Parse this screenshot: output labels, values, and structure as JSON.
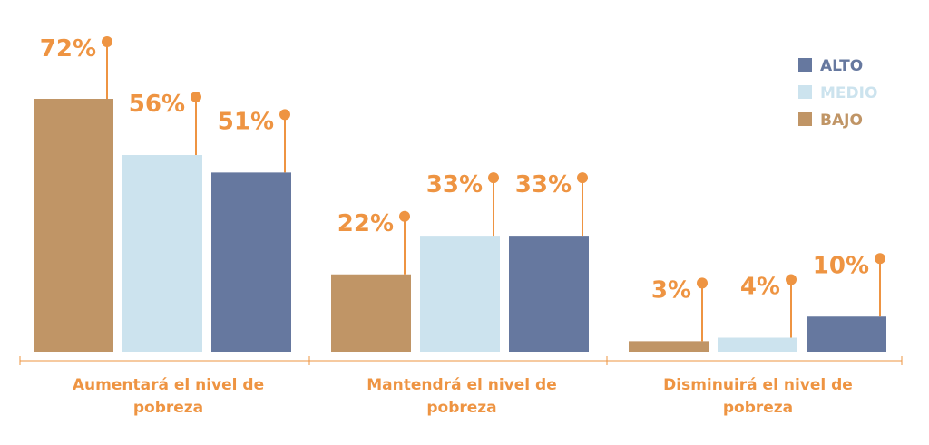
{
  "chart_data": {
    "type": "bar",
    "categories": [
      [
        "Aumentará el nivel de",
        "pobreza"
      ],
      [
        "Mantendrá el nivel de",
        "pobreza"
      ],
      [
        "Disminuirá el nivel de",
        "pobreza"
      ]
    ],
    "series": [
      {
        "name": "BAJO",
        "values": [
          72,
          22,
          3
        ],
        "labels": [
          "72%",
          "22%",
          "3%"
        ],
        "color": "#c09566"
      },
      {
        "name": "MEDIO",
        "values": [
          56,
          33,
          4
        ],
        "labels": [
          "56%",
          "33%",
          "4%"
        ],
        "color": "#cce3ee"
      },
      {
        "name": "ALTO",
        "values": [
          51,
          33,
          10
        ],
        "labels": [
          "51%",
          "33%",
          "10%"
        ],
        "color": "#66789f"
      }
    ],
    "legend": {
      "placement": "top-right",
      "order": [
        "ALTO",
        "MEDIO",
        "BAJO"
      ]
    },
    "ylim": [
      0,
      100
    ],
    "grid": false,
    "accent_color": "#ee9442"
  }
}
